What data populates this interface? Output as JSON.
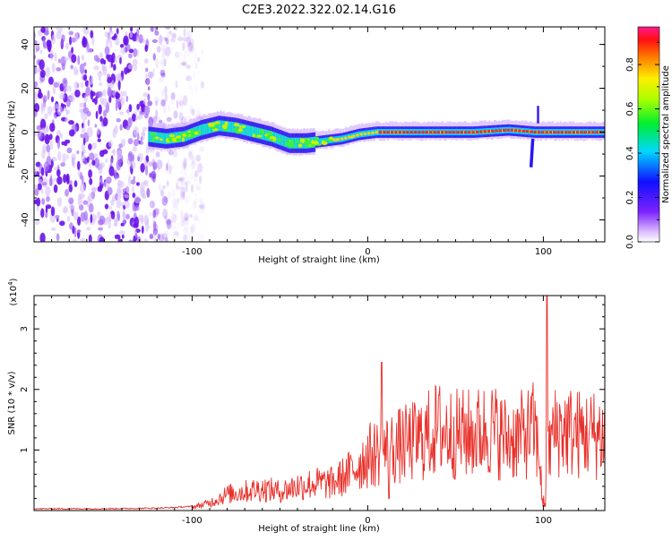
{
  "title": "C2E3.2022.322.02.14.G16",
  "colors": {
    "snr_line": "#e8312b",
    "noise": "#7a2cf0",
    "axis": "#000000"
  },
  "chart_data": [
    {
      "type": "heatmap",
      "xlabel": "Height of straight line (km)",
      "ylabel": "Frequency (Hz)",
      "xlim": [
        -190,
        135
      ],
      "ylim": [
        -50,
        48
      ],
      "x_ticks": [
        -100,
        0,
        100
      ],
      "y_ticks": [
        -40,
        -20,
        0,
        20,
        40
      ],
      "colorbar": {
        "label": "Normalized spectral amplitude",
        "range": [
          0,
          0.97
        ],
        "ticks": [
          0.0,
          0.2,
          0.4,
          0.6,
          0.8
        ],
        "colormap": "rainbow"
      },
      "ridge": [
        {
          "x": -125,
          "y": -2
        },
        {
          "x": -115,
          "y": -3
        },
        {
          "x": -105,
          "y": -2
        },
        {
          "x": -95,
          "y": 1
        },
        {
          "x": -85,
          "y": 3
        },
        {
          "x": -75,
          "y": 2
        },
        {
          "x": -65,
          "y": 0
        },
        {
          "x": -55,
          "y": -2
        },
        {
          "x": -45,
          "y": -5
        },
        {
          "x": -35,
          "y": -5
        },
        {
          "x": -25,
          "y": -4
        },
        {
          "x": -15,
          "y": -3
        },
        {
          "x": -5,
          "y": -1
        },
        {
          "x": 5,
          "y": 0
        },
        {
          "x": 20,
          "y": 0
        },
        {
          "x": 40,
          "y": 0
        },
        {
          "x": 60,
          "y": 0
        },
        {
          "x": 80,
          "y": 1
        },
        {
          "x": 95,
          "y": 0
        },
        {
          "x": 110,
          "y": 0
        },
        {
          "x": 125,
          "y": 0
        },
        {
          "x": 135,
          "y": 0
        }
      ],
      "spur": {
        "x": 94,
        "y_from": -3,
        "y_to": -16
      },
      "noise_region": [
        -190,
        -100
      ]
    },
    {
      "type": "line",
      "xlabel": "Height of straight line (km)",
      "ylabel": "SNR (10 * v/v)",
      "y_multiplier": "(x10",
      "y_multiplier_exp": "4",
      "y_multiplier_close": ")",
      "xlim": [
        -190,
        135
      ],
      "ylim": [
        0,
        3.55
      ],
      "x_ticks": [
        -100,
        0,
        100
      ],
      "y_ticks": [
        1,
        2,
        3
      ],
      "series": [
        {
          "x": [
            -190,
            -150,
            -120,
            -110,
            -100,
            -90,
            -80,
            -70,
            -60,
            -50,
            -40,
            -30,
            -20,
            -10,
            0,
            10,
            20,
            30,
            40,
            50,
            60,
            70,
            80,
            90,
            95,
            100,
            105,
            110,
            120,
            135
          ],
          "y": [
            0.02,
            0.02,
            0.03,
            0.04,
            0.06,
            0.14,
            0.3,
            0.35,
            0.4,
            0.35,
            0.45,
            0.5,
            0.5,
            0.7,
            1.0,
            1.1,
            1.2,
            1.3,
            1.5,
            1.4,
            1.4,
            1.5,
            1.3,
            1.4,
            1.5,
            0.5,
            1.4,
            1.5,
            1.4,
            1.4
          ]
        }
      ],
      "spike": {
        "x": 102,
        "y": 3.55
      }
    }
  ]
}
